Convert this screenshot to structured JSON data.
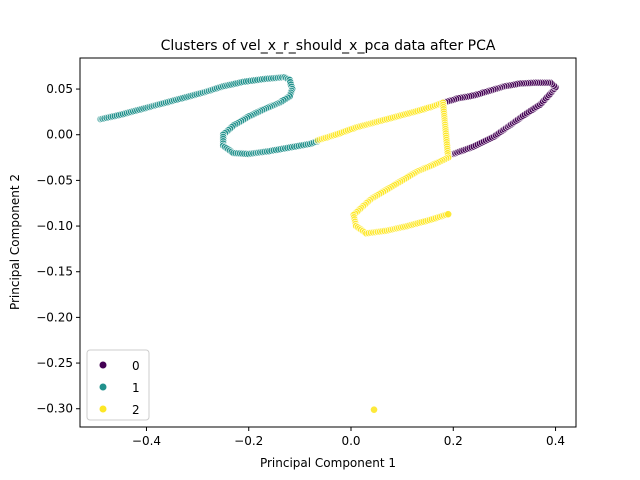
{
  "chart_data": {
    "type": "scatter",
    "title": "Clusters of vel_x_r_should_x_pca data after PCA",
    "xlabel": "Principal Component 1",
    "ylabel": "Principal Component 2",
    "xlim": [
      -0.53,
      0.44
    ],
    "ylim": [
      -0.32,
      0.084
    ],
    "xticks": [
      -0.4,
      -0.2,
      0.0,
      0.2,
      0.4
    ],
    "xtick_labels": [
      "−0.4",
      "−0.2",
      "0.0",
      "0.2",
      "0.4"
    ],
    "yticks": [
      0.05,
      0.0,
      -0.05,
      -0.1,
      -0.15,
      -0.2,
      -0.25,
      -0.3
    ],
    "ytick_labels": [
      "0.05",
      "0.00",
      "−0.05",
      "−0.10",
      "−0.15",
      "−0.20",
      "−0.25",
      "−0.30"
    ],
    "grid": false,
    "legend_position": "lower-left",
    "series": [
      {
        "name": "0",
        "color": "#440154",
        "points": [
          [
            0.2,
            -0.021
          ],
          [
            0.24,
            -0.013
          ],
          [
            0.28,
            -0.002
          ],
          [
            0.31,
            0.01
          ],
          [
            0.34,
            0.022
          ],
          [
            0.37,
            0.033
          ],
          [
            0.39,
            0.045
          ],
          [
            0.4,
            0.052
          ],
          [
            0.39,
            0.057
          ],
          [
            0.36,
            0.057
          ],
          [
            0.33,
            0.056
          ],
          [
            0.3,
            0.053
          ],
          [
            0.27,
            0.048
          ],
          [
            0.24,
            0.043
          ],
          [
            0.21,
            0.04
          ],
          [
            0.18,
            0.035
          ]
        ]
      },
      {
        "name": "1",
        "color": "#21918c",
        "points": [
          [
            -0.49,
            0.017
          ],
          [
            -0.45,
            0.022
          ],
          [
            -0.41,
            0.028
          ],
          [
            -0.37,
            0.034
          ],
          [
            -0.33,
            0.04
          ],
          [
            -0.29,
            0.046
          ],
          [
            -0.25,
            0.053
          ],
          [
            -0.21,
            0.058
          ],
          [
            -0.17,
            0.061
          ],
          [
            -0.13,
            0.063
          ],
          [
            -0.12,
            0.06
          ],
          [
            -0.115,
            0.05
          ],
          [
            -0.12,
            0.042
          ],
          [
            -0.14,
            0.035
          ],
          [
            -0.17,
            0.028
          ],
          [
            -0.2,
            0.02
          ],
          [
            -0.23,
            0.01
          ],
          [
            -0.25,
            0.0
          ],
          [
            -0.25,
            -0.012
          ],
          [
            -0.23,
            -0.02
          ],
          [
            -0.2,
            -0.021
          ],
          [
            -0.16,
            -0.018
          ],
          [
            -0.12,
            -0.014
          ],
          [
            -0.08,
            -0.01
          ],
          [
            -0.065,
            -0.007
          ]
        ]
      },
      {
        "name": "2",
        "color": "#fde725",
        "points": [
          [
            -0.065,
            -0.006
          ],
          [
            -0.03,
            0.0
          ],
          [
            0.01,
            0.008
          ],
          [
            0.05,
            0.014
          ],
          [
            0.09,
            0.02
          ],
          [
            0.13,
            0.026
          ],
          [
            0.16,
            0.031
          ],
          [
            0.18,
            0.035
          ],
          [
            0.19,
            -0.025
          ],
          [
            0.16,
            -0.033
          ],
          [
            0.13,
            -0.04
          ],
          [
            0.1,
            -0.05
          ],
          [
            0.07,
            -0.06
          ],
          [
            0.04,
            -0.07
          ],
          [
            0.02,
            -0.08
          ],
          [
            0.005,
            -0.088
          ],
          [
            0.01,
            -0.1
          ],
          [
            0.03,
            -0.108
          ],
          [
            0.07,
            -0.105
          ],
          [
            0.11,
            -0.1
          ],
          [
            0.15,
            -0.094
          ],
          [
            0.19,
            -0.087
          ],
          [
            0.045,
            -0.301
          ]
        ]
      }
    ]
  }
}
